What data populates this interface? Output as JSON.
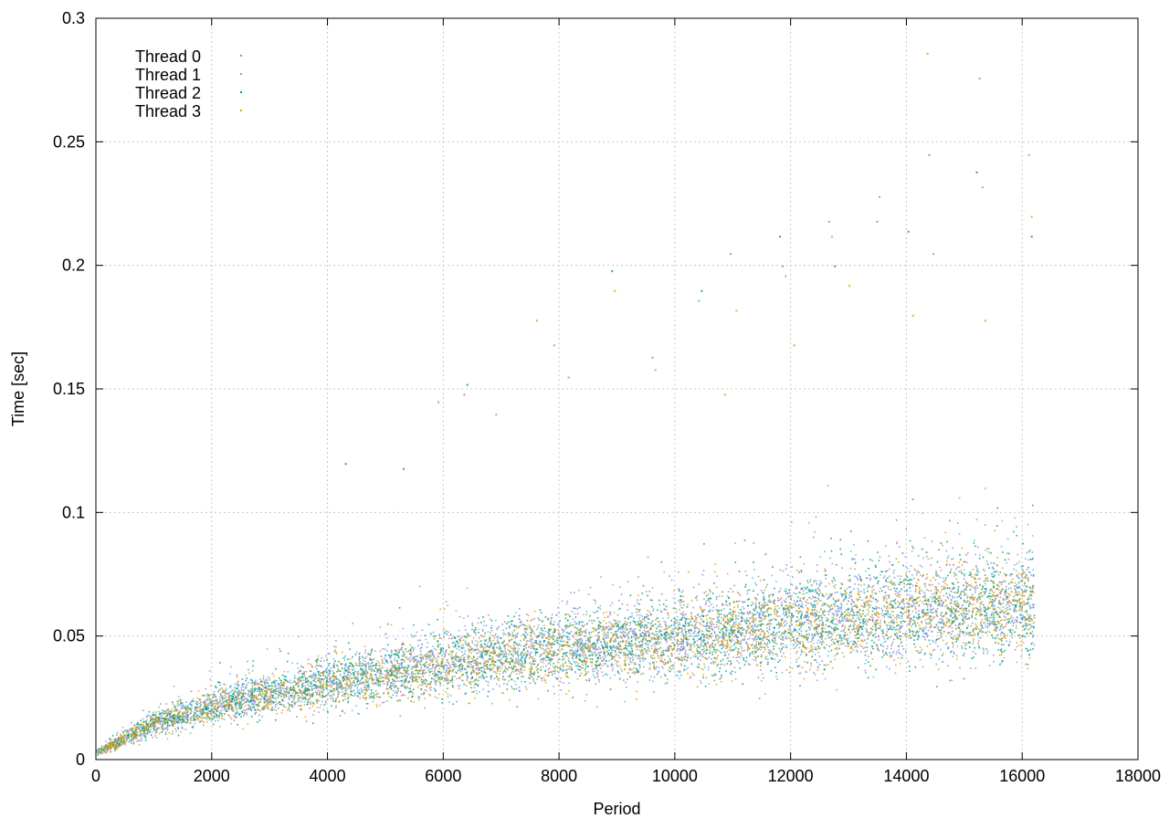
{
  "chart_data": {
    "type": "scatter",
    "title": "",
    "xlabel": "Period",
    "ylabel": "Time [sec]",
    "xlim": [
      0,
      18000
    ],
    "ylim": [
      0,
      0.3
    ],
    "x_ticks": [
      0,
      2000,
      4000,
      6000,
      8000,
      10000,
      12000,
      14000,
      16000,
      18000
    ],
    "y_ticks": [
      0,
      0.05,
      0.1,
      0.15,
      0.2,
      0.25,
      0.3
    ],
    "x_tick_labels": [
      "0",
      "2000",
      "4000",
      "6000",
      "8000",
      "10000",
      "12000",
      "14000",
      "16000",
      "18000"
    ],
    "y_tick_labels": [
      "0",
      "0.05",
      "0.1",
      "0.15",
      "0.2",
      "0.25",
      "0.3"
    ],
    "grid": true,
    "legend_position": "top-left",
    "series": [
      {
        "name": "Thread 0",
        "color": "#9b7fd0",
        "profile": [
          [
            0,
            0.003
          ],
          [
            500,
            0.009
          ],
          [
            1000,
            0.015
          ],
          [
            2000,
            0.022
          ],
          [
            3000,
            0.027
          ],
          [
            4000,
            0.032
          ],
          [
            5000,
            0.036
          ],
          [
            6000,
            0.04
          ],
          [
            7000,
            0.043
          ],
          [
            8000,
            0.046
          ],
          [
            9000,
            0.048
          ],
          [
            10000,
            0.05
          ],
          [
            11000,
            0.053
          ],
          [
            12000,
            0.056
          ],
          [
            13000,
            0.058
          ],
          [
            14000,
            0.061
          ],
          [
            15000,
            0.063
          ],
          [
            16200,
            0.064
          ]
        ],
        "x": [
          5900,
          6350,
          8150,
          9600,
          10950,
          11850,
          12650,
          13480,
          14380,
          15250
        ],
        "y": [
          0.145,
          0.148,
          0.155,
          0.163,
          0.205,
          0.2,
          0.218,
          0.218,
          0.245,
          0.276
        ]
      },
      {
        "name": "Thread 1",
        "color": "#56b4e9",
        "profile": [
          [
            0,
            0.003
          ],
          [
            500,
            0.009
          ],
          [
            1000,
            0.015
          ],
          [
            2000,
            0.022
          ],
          [
            3000,
            0.027
          ],
          [
            4000,
            0.031
          ],
          [
            5000,
            0.035
          ],
          [
            6000,
            0.039
          ],
          [
            7000,
            0.042
          ],
          [
            8000,
            0.045
          ],
          [
            9000,
            0.047
          ],
          [
            10000,
            0.049
          ],
          [
            11000,
            0.052
          ],
          [
            12000,
            0.055
          ],
          [
            13000,
            0.057
          ],
          [
            14000,
            0.06
          ],
          [
            15000,
            0.062
          ],
          [
            16200,
            0.063
          ]
        ],
        "x": [
          6900,
          7900,
          9650,
          10400,
          11900,
          12700,
          13520,
          14450,
          15300,
          16100
        ],
        "y": [
          0.14,
          0.168,
          0.158,
          0.186,
          0.196,
          0.212,
          0.228,
          0.205,
          0.232,
          0.245
        ]
      },
      {
        "name": "Thread 2",
        "color": "#009e73",
        "profile": [
          [
            0,
            0.003
          ],
          [
            500,
            0.009
          ],
          [
            1000,
            0.015
          ],
          [
            2000,
            0.022
          ],
          [
            3000,
            0.027
          ],
          [
            4000,
            0.031
          ],
          [
            5000,
            0.035
          ],
          [
            6000,
            0.039
          ],
          [
            7000,
            0.042
          ],
          [
            8000,
            0.045
          ],
          [
            9000,
            0.047
          ],
          [
            10000,
            0.049
          ],
          [
            11000,
            0.052
          ],
          [
            12000,
            0.055
          ],
          [
            13000,
            0.057
          ],
          [
            14000,
            0.06
          ],
          [
            15000,
            0.062
          ],
          [
            16200,
            0.063
          ]
        ],
        "x": [
          4300,
          5300,
          6400,
          8900,
          10450,
          11800,
          12750,
          14020,
          15200,
          16150
        ],
        "y": [
          0.12,
          0.118,
          0.152,
          0.198,
          0.19,
          0.212,
          0.2,
          0.214,
          0.238,
          0.212
        ]
      },
      {
        "name": "Thread 3",
        "color": "#e69f00",
        "profile": [
          [
            0,
            0.003
          ],
          [
            500,
            0.009
          ],
          [
            1000,
            0.015
          ],
          [
            2000,
            0.022
          ],
          [
            3000,
            0.026
          ],
          [
            4000,
            0.03
          ],
          [
            5000,
            0.034
          ],
          [
            6000,
            0.038
          ],
          [
            7000,
            0.041
          ],
          [
            8000,
            0.044
          ],
          [
            9000,
            0.046
          ],
          [
            10000,
            0.048
          ],
          [
            11000,
            0.051
          ],
          [
            12000,
            0.054
          ],
          [
            13000,
            0.056
          ],
          [
            14000,
            0.059
          ],
          [
            15000,
            0.061
          ],
          [
            16200,
            0.062
          ]
        ],
        "x": [
          7600,
          8950,
          10850,
          11050,
          12050,
          13000,
          14100,
          14350,
          15350,
          16150
        ],
        "y": [
          0.178,
          0.19,
          0.148,
          0.182,
          0.168,
          0.192,
          0.18,
          0.286,
          0.178,
          0.22
        ]
      }
    ]
  }
}
